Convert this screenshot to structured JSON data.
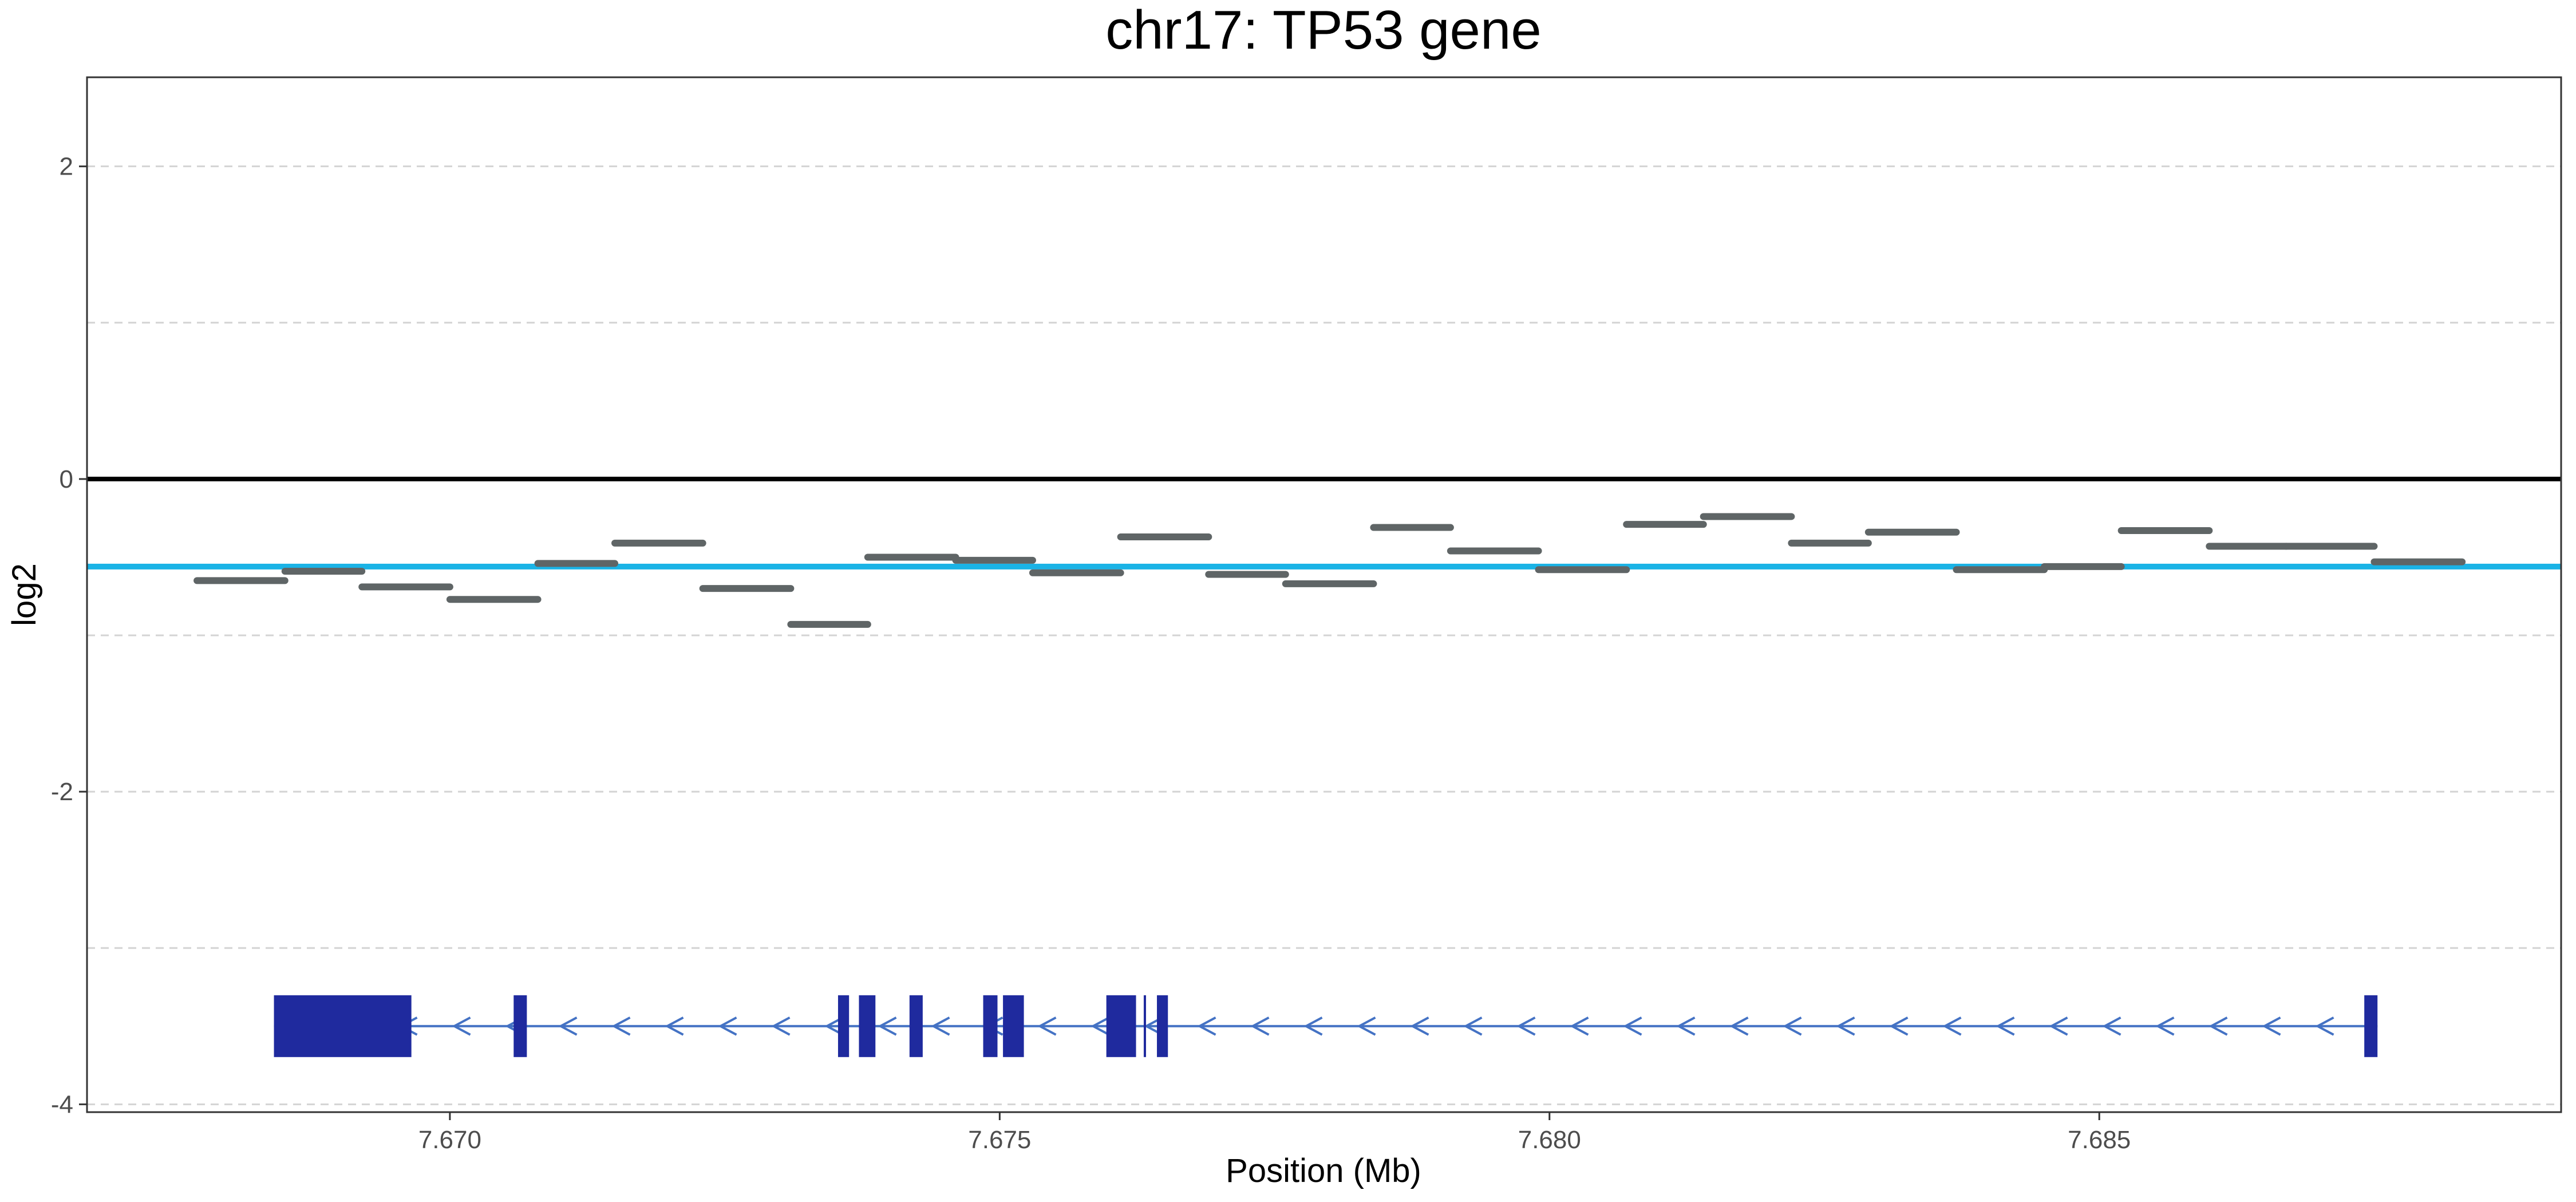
{
  "chart_data": {
    "type": "line",
    "title": "chr17: TP53 gene",
    "xlabel": "Position (Mb)",
    "ylabel": "log2",
    "xlim": [
      7.6667,
      7.6892
    ],
    "ylim": [
      -4.05,
      2.57
    ],
    "x_ticks": [
      7.67,
      7.675,
      7.68,
      7.685
    ],
    "x_tick_labels": [
      "7.670",
      "7.675",
      "7.680",
      "7.685"
    ],
    "y_ticks": [
      2,
      0,
      -2,
      -4
    ],
    "y_tick_labels": [
      "2",
      "0",
      "-2",
      "-4"
    ],
    "y_minor_gridlines": [
      1,
      -1,
      -3
    ],
    "grid": "horizontal dashed",
    "reference_line": {
      "y": 0,
      "color": "#000000"
    },
    "segment_line": {
      "y": -0.56,
      "color": "#1ab3e6"
    },
    "bin_color": "#5f6566",
    "bins": [
      {
        "start": 7.6677,
        "end": 7.6685,
        "log2": -0.65
      },
      {
        "start": 7.6685,
        "end": 7.6692,
        "log2": -0.59
      },
      {
        "start": 7.6692,
        "end": 7.67,
        "log2": -0.69
      },
      {
        "start": 7.67,
        "end": 7.6708,
        "log2": -0.77
      },
      {
        "start": 7.6708,
        "end": 7.6715,
        "log2": -0.54
      },
      {
        "start": 7.6715,
        "end": 7.6723,
        "log2": -0.41
      },
      {
        "start": 7.6723,
        "end": 7.6731,
        "log2": -0.7
      },
      {
        "start": 7.6731,
        "end": 7.6738,
        "log2": -0.93
      },
      {
        "start": 7.6738,
        "end": 7.6746,
        "log2": -0.5
      },
      {
        "start": 7.6746,
        "end": 7.6753,
        "log2": -0.52
      },
      {
        "start": 7.6753,
        "end": 7.6761,
        "log2": -0.6
      },
      {
        "start": 7.6761,
        "end": 7.6769,
        "log2": -0.37
      },
      {
        "start": 7.6769,
        "end": 7.6776,
        "log2": -0.61
      },
      {
        "start": 7.6776,
        "end": 7.6784,
        "log2": -0.67
      },
      {
        "start": 7.6784,
        "end": 7.6791,
        "log2": -0.31
      },
      {
        "start": 7.6791,
        "end": 7.6799,
        "log2": -0.46
      },
      {
        "start": 7.6799,
        "end": 7.6807,
        "log2": -0.58
      },
      {
        "start": 7.6807,
        "end": 7.6814,
        "log2": -0.29
      },
      {
        "start": 7.6814,
        "end": 7.6822,
        "log2": -0.24
      },
      {
        "start": 7.6822,
        "end": 7.6829,
        "log2": -0.41
      },
      {
        "start": 7.6829,
        "end": 7.6837,
        "log2": -0.34
      },
      {
        "start": 7.6837,
        "end": 7.6845,
        "log2": -0.58
      },
      {
        "start": 7.6845,
        "end": 7.6852,
        "log2": -0.56
      },
      {
        "start": 7.6852,
        "end": 7.686,
        "log2": -0.33
      },
      {
        "start": 7.686,
        "end": 7.6867,
        "log2": -0.43
      },
      {
        "start": 7.6867,
        "end": 7.6875,
        "log2": -0.43
      },
      {
        "start": 7.6875,
        "end": 7.6883,
        "log2": -0.53
      }
    ],
    "gene_track": {
      "name": "TP53",
      "strand": "-",
      "y": -3.5,
      "tx_start": 7.6684,
      "tx_end": 7.68753,
      "intron_color": "#4472c4",
      "exon_color": "#1f2a9e",
      "exons": [
        {
          "start": 7.6684,
          "end": 7.66965,
          "type": "utr"
        },
        {
          "start": 7.67058,
          "end": 7.6707,
          "type": "cds"
        },
        {
          "start": 7.67353,
          "end": 7.67363,
          "type": "cds"
        },
        {
          "start": 7.67372,
          "end": 7.67387,
          "type": "cds"
        },
        {
          "start": 7.67418,
          "end": 7.6743,
          "type": "cds"
        },
        {
          "start": 7.67485,
          "end": 7.67498,
          "type": "cds"
        },
        {
          "start": 7.67503,
          "end": 7.67522,
          "type": "cds"
        },
        {
          "start": 7.67597,
          "end": 7.67624,
          "type": "cds"
        },
        {
          "start": 7.67631,
          "end": 7.67633,
          "type": "cds"
        },
        {
          "start": 7.67643,
          "end": 7.67653,
          "type": "cds"
        },
        {
          "start": 7.68741,
          "end": 7.68753,
          "type": "utr"
        }
      ]
    }
  }
}
